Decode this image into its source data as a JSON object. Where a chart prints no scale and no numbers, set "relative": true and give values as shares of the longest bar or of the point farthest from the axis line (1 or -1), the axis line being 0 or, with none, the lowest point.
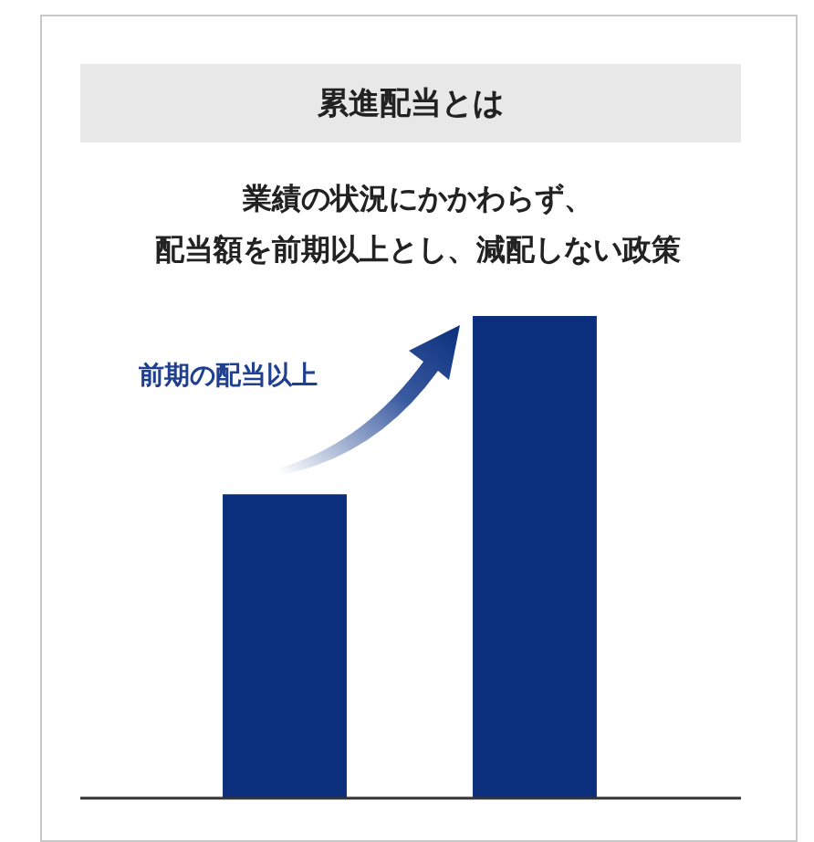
{
  "chart_data": {
    "type": "bar",
    "title": "累進配当とは",
    "subtitle": "業績の状況にかかわらず、配当額を前期以上とし、減配しない政策",
    "categories": [
      null,
      null
    ],
    "values": [
      0.63,
      1
    ],
    "color": "#0b2f7c",
    "relative": true,
    "annotations": [
      "前期の配当以上"
    ]
  }
}
